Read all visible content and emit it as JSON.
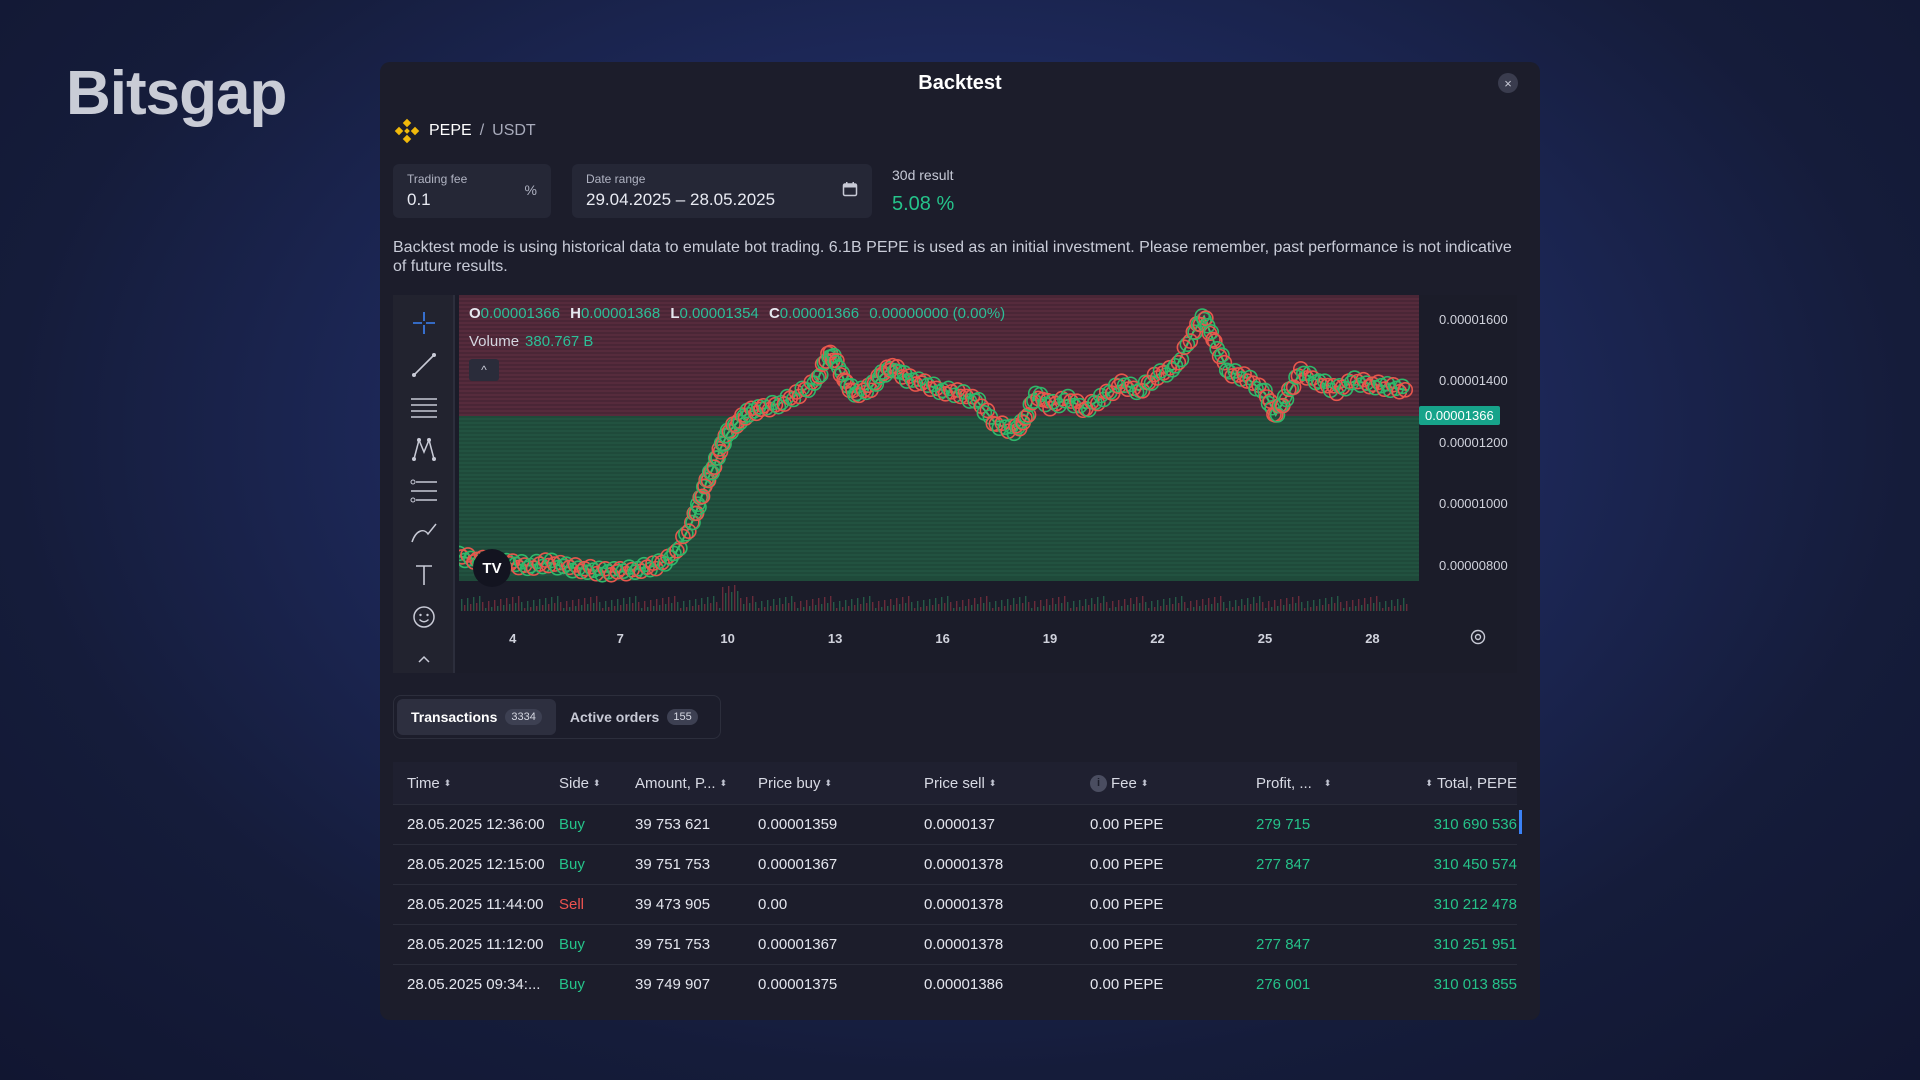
{
  "brand": "Bitsgap",
  "modal": {
    "title": "Backtest",
    "close_label": "×"
  },
  "pair": {
    "base": "PEPE",
    "separator": "/",
    "quote": "USDT"
  },
  "trading_fee": {
    "label": "Trading fee",
    "value": "0.1",
    "unit": "%"
  },
  "date_range": {
    "label": "Date range",
    "value": "29.04.2025 – 28.05.2025"
  },
  "result": {
    "label": "30d result",
    "value": "5.08 %"
  },
  "notice": "Backtest mode is using historical data to emulate bot trading. 6.1B PEPE is used as an initial investment. Please remember, past performance is not indicative of future results.",
  "ohlc": {
    "o_label": "O",
    "o": "0.00001366",
    "h_label": "H",
    "h": "0.00001368",
    "l_label": "L",
    "l": "0.00001354",
    "c_label": "C",
    "c": "0.00001366",
    "change": "0.00000000 (0.00%)"
  },
  "volume": {
    "label": "Volume",
    "value": "380.767 B"
  },
  "collapse_label": "^",
  "tv_logo": "TV",
  "last_price": "0.00001366",
  "colors": {
    "accent_green": "#25c38a",
    "sell_red": "#ef5350",
    "price_tag": "#17a38a"
  },
  "chart_data": {
    "type": "line",
    "ylim": [
      7.5e-06,
      1.68e-05
    ],
    "yticks": [
      "0.00001600",
      "0.00001400",
      "0.00001200",
      "0.00001000",
      "0.00000800"
    ],
    "ytick_values": [
      1.6e-05,
      1.4e-05,
      1.2e-05,
      1e-05,
      8e-06
    ],
    "xticks": [
      "4",
      "7",
      "10",
      "13",
      "16",
      "19",
      "22",
      "25",
      "28"
    ],
    "xtick_days": [
      4,
      7,
      10,
      13,
      16,
      19,
      22,
      25,
      28
    ],
    "xlim": [
      2.5,
      29.3
    ],
    "series": [
      {
        "x": [
          2.5,
          3,
          3.5,
          4,
          4.5,
          5,
          5.5,
          6,
          6.5,
          7,
          7.5,
          8,
          8.5,
          9,
          9.2,
          9.4,
          9.6,
          9.8,
          10,
          10.3,
          10.6,
          11,
          11.5,
          12,
          12.5,
          12.8,
          13,
          13.3,
          13.6,
          14,
          14.3,
          14.6,
          15,
          15.5,
          16,
          16.5,
          17,
          17.5,
          18,
          18.3,
          18.6,
          19,
          19.5,
          20,
          20.5,
          21,
          21.5,
          22,
          22.5,
          23,
          23.3,
          23.6,
          24,
          24.5,
          25,
          25.3,
          25.6,
          26,
          26.5,
          27,
          27.5,
          28,
          28.5,
          29
        ],
        "y": [
          8.3e-06,
          8.2e-06,
          8.1e-06,
          8.05e-06,
          8e-06,
          8.1e-06,
          7.95e-06,
          7.9e-06,
          7.8e-06,
          7.8e-06,
          7.9e-06,
          8e-06,
          8.3e-06,
          9.4e-06,
          1e-05,
          1.07e-05,
          1.12e-05,
          1.18e-05,
          1.23e-05,
          1.27e-05,
          1.3e-05,
          1.31e-05,
          1.33e-05,
          1.36e-05,
          1.4e-05,
          1.49e-05,
          1.47e-05,
          1.39e-05,
          1.36e-05,
          1.38e-05,
          1.42e-05,
          1.45e-05,
          1.41e-05,
          1.39e-05,
          1.37e-05,
          1.36e-05,
          1.33e-05,
          1.26e-05,
          1.24e-05,
          1.27e-05,
          1.36e-05,
          1.32e-05,
          1.34e-05,
          1.31e-05,
          1.35e-05,
          1.39e-05,
          1.37e-05,
          1.42e-05,
          1.44e-05,
          1.56e-05,
          1.61e-05,
          1.52e-05,
          1.43e-05,
          1.41e-05,
          1.36e-05,
          1.29e-05,
          1.35e-05,
          1.43e-05,
          1.4e-05,
          1.37e-05,
          1.4e-05,
          1.39e-05,
          1.38e-05,
          1.37e-05
        ]
      }
    ]
  },
  "tabs": [
    {
      "label": "Transactions",
      "count": "3334"
    },
    {
      "label": "Active orders",
      "count": "155"
    }
  ],
  "table": {
    "headers": [
      "Time",
      "Side",
      "Amount, P...",
      "Price buy",
      "Price sell",
      "Fee",
      "Profit, ...",
      "Total, PEPE"
    ],
    "rows": [
      {
        "time": "28.05.2025 12:36:00",
        "side": "Buy",
        "amount": "39 753 621",
        "price_buy": "0.00001359",
        "price_sell": "0.0000137",
        "fee": "0.00 PEPE",
        "profit": "279 715",
        "total": "310 690 536"
      },
      {
        "time": "28.05.2025 12:15:00",
        "side": "Buy",
        "amount": "39 751 753",
        "price_buy": "0.00001367",
        "price_sell": "0.00001378",
        "fee": "0.00 PEPE",
        "profit": "277 847",
        "total": "310 450 574"
      },
      {
        "time": "28.05.2025 11:44:00",
        "side": "Sell",
        "amount": "39 473 905",
        "price_buy": "0.00",
        "price_sell": "0.00001378",
        "fee": "0.00 PEPE",
        "profit": "",
        "total": "310 212 478"
      },
      {
        "time": "28.05.2025 11:12:00",
        "side": "Buy",
        "amount": "39 751 753",
        "price_buy": "0.00001367",
        "price_sell": "0.00001378",
        "fee": "0.00 PEPE",
        "profit": "277 847",
        "total": "310 251 951"
      },
      {
        "time": "28.05.2025 09:34:...",
        "side": "Buy",
        "amount": "39 749 907",
        "price_buy": "0.00001375",
        "price_sell": "0.00001386",
        "fee": "0.00 PEPE",
        "profit": "276 001",
        "total": "310 013 855"
      }
    ]
  }
}
